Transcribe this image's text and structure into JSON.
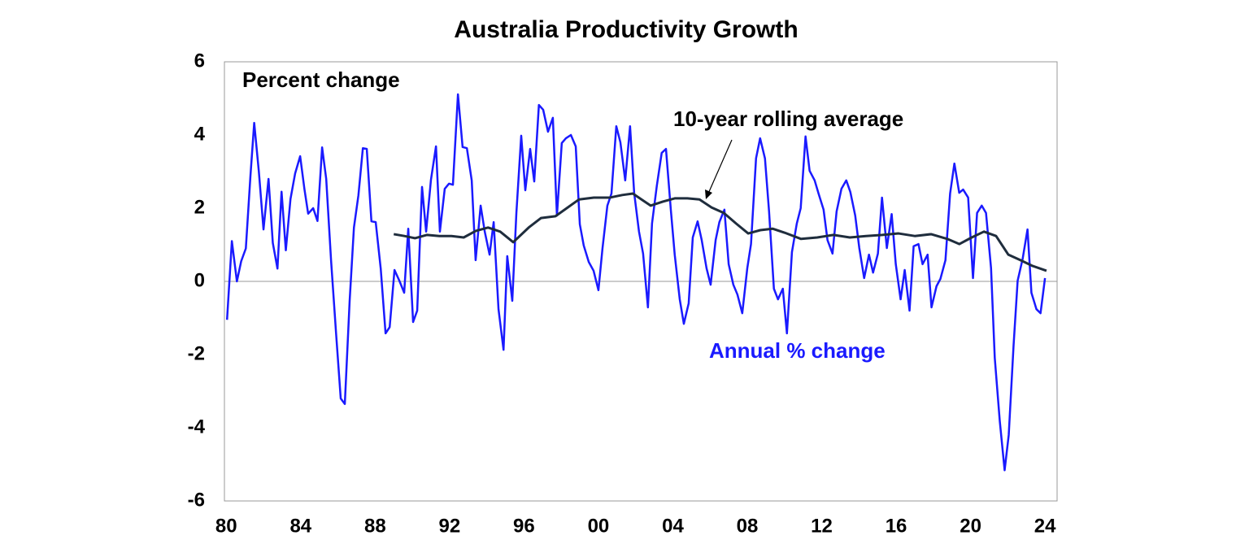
{
  "chart_data": {
    "type": "line",
    "title": "Australia Productivity Growth",
    "ylabel": "Percent change",
    "xlim": [
      1979.9,
      2024.65
    ],
    "xticks": [
      {
        "value": 1980,
        "label": "80"
      },
      {
        "value": 1984,
        "label": "84"
      },
      {
        "value": 1988,
        "label": "88"
      },
      {
        "value": 1992,
        "label": "92"
      },
      {
        "value": 1996,
        "label": "96"
      },
      {
        "value": 2000,
        "label": "00"
      },
      {
        "value": 2004,
        "label": "04"
      },
      {
        "value": 2008,
        "label": "08"
      },
      {
        "value": 2012,
        "label": "12"
      },
      {
        "value": 2016,
        "label": "16"
      },
      {
        "value": 2020,
        "label": "20"
      },
      {
        "value": 2024,
        "label": "24"
      }
    ],
    "ylim": [
      -6,
      6
    ],
    "yticks": [
      -6,
      -4,
      -2,
      0,
      2,
      4,
      6
    ],
    "zero_line": true,
    "series": [
      {
        "name": "Annual % change",
        "color": "#1a1aff",
        "x": [
          1980.04,
          1980.3,
          1980.57,
          1980.8,
          1981.05,
          1981.3,
          1981.5,
          1981.75,
          1982.0,
          1982.27,
          1982.5,
          1982.75,
          1982.97,
          1983.2,
          1983.45,
          1983.7,
          1983.97,
          1984.2,
          1984.4,
          1984.67,
          1984.9,
          1985.15,
          1985.37,
          1985.63,
          1985.9,
          1986.15,
          1986.37,
          1986.63,
          1986.86,
          1987.1,
          1987.34,
          1987.55,
          1987.8,
          1988.03,
          1988.3,
          1988.56,
          1988.78,
          1989.04,
          1989.3,
          1989.56,
          1989.78,
          1990.04,
          1990.26,
          1990.52,
          1990.74,
          1991.0,
          1991.27,
          1991.48,
          1991.74,
          1991.97,
          1992.18,
          1992.45,
          1992.7,
          1992.93,
          1993.19,
          1993.4,
          1993.67,
          1993.89,
          1994.15,
          1994.37,
          1994.63,
          1994.9,
          1995.1,
          1995.37,
          1995.59,
          1995.85,
          1996.07,
          1996.33,
          1996.55,
          1996.8,
          1997.03,
          1997.29,
          1997.55,
          1997.77,
          1998.03,
          1998.25,
          1998.52,
          1998.78,
          1999.0,
          1999.21,
          1999.48,
          1999.74,
          2000.0,
          2000.22,
          2000.48,
          2000.7,
          2000.96,
          2001.18,
          2001.44,
          2001.7,
          2001.92,
          2002.18,
          2002.4,
          2002.66,
          2002.88,
          2003.14,
          2003.4,
          2003.63,
          2003.89,
          2004.1,
          2004.37,
          2004.59,
          2004.85,
          2005.07,
          2005.33,
          2005.55,
          2005.81,
          2006.03,
          2006.3,
          2006.5,
          2006.77,
          2007.0,
          2007.25,
          2007.47,
          2007.73,
          2008.0,
          2008.2,
          2008.47,
          2008.69,
          2008.95,
          2009.17,
          2009.43,
          2009.65,
          2009.91,
          2010.13,
          2010.4,
          2010.66,
          2010.87,
          2011.13,
          2011.35,
          2011.62,
          2011.83,
          2012.1,
          2012.31,
          2012.58,
          2012.8,
          2013.06,
          2013.32,
          2013.54,
          2013.8,
          2014.02,
          2014.28,
          2014.54,
          2014.76,
          2015.02,
          2015.24,
          2015.5,
          2015.76,
          2015.98,
          2016.24,
          2016.46,
          2016.72,
          2016.94,
          2017.2,
          2017.42,
          2017.69,
          2017.9,
          2018.17,
          2018.38,
          2018.65,
          2018.9,
          2019.13,
          2019.39,
          2019.6,
          2019.87,
          2020.13,
          2020.35,
          2020.6,
          2020.83,
          2021.1,
          2021.3,
          2021.57,
          2021.83,
          2022.05,
          2022.31,
          2022.53,
          2022.8,
          2023.06,
          2023.27,
          2023.54,
          2023.76,
          2024.0
        ],
        "values": [
          -1.05,
          1.1,
          0,
          0.55,
          0.9,
          2.9,
          4.33,
          3.0,
          1.42,
          2.8,
          1.05,
          0.35,
          2.45,
          0.85,
          2.25,
          2.95,
          3.42,
          2.52,
          1.85,
          2.0,
          1.65,
          3.66,
          2.8,
          0.58,
          -1.42,
          -3.2,
          -3.35,
          -0.53,
          1.47,
          2.35,
          3.64,
          3.62,
          1.64,
          1.62,
          0.35,
          -1.42,
          -1.25,
          0.31,
          0.02,
          -0.31,
          1.44,
          -1.11,
          -0.8,
          2.58,
          1.36,
          2.78,
          3.69,
          1.36,
          2.53,
          2.67,
          2.64,
          5.11,
          3.67,
          3.64,
          2.76,
          0.58,
          2.07,
          1.36,
          0.73,
          1.62,
          -0.76,
          -1.87,
          0.69,
          -0.53,
          1.87,
          3.98,
          2.49,
          3.62,
          2.73,
          4.82,
          4.69,
          4.09,
          4.47,
          1.8,
          3.78,
          3.91,
          4.0,
          3.69,
          1.56,
          0.98,
          0.53,
          0.29,
          -0.24,
          0.91,
          2.07,
          2.4,
          4.24,
          3.8,
          2.76,
          4.24,
          2.42,
          1.36,
          0.76,
          -0.71,
          1.58,
          2.62,
          3.51,
          3.62,
          1.96,
          0.73,
          -0.49,
          -1.16,
          -0.6,
          1.2,
          1.64,
          1.13,
          0.36,
          -0.09,
          1.13,
          1.62,
          1.96,
          0.47,
          -0.09,
          -0.36,
          -0.87,
          0.36,
          1.02,
          3.36,
          3.91,
          3.36,
          1.91,
          -0.2,
          -0.49,
          -0.2,
          -1.42,
          0.8,
          1.58,
          2.0,
          3.96,
          3.02,
          2.76,
          2.4,
          1.96,
          1.13,
          0.76,
          1.91,
          2.53,
          2.76,
          2.44,
          1.8,
          0.91,
          0.09,
          0.73,
          0.24,
          0.76,
          2.29,
          0.91,
          1.84,
          0.47,
          -0.49,
          0.31,
          -0.8,
          0.96,
          1.02,
          0.47,
          0.73,
          -0.71,
          -0.13,
          0.07,
          0.58,
          2.4,
          3.22,
          2.42,
          2.51,
          2.29,
          0.09,
          1.87,
          2.07,
          1.87,
          0.36,
          -2.09,
          -3.82,
          -5.16,
          -4.2,
          -1.76,
          0.02,
          0.62,
          1.42,
          -0.31,
          -0.76,
          -0.87,
          0.09
        ]
      },
      {
        "name": "10-year rolling average",
        "color": "#1f2d3d",
        "x": [
          1989.0,
          1989.57,
          1990.14,
          1990.79,
          1991.45,
          1992.1,
          1992.76,
          1993.41,
          1994.07,
          1994.72,
          1995.42,
          1996.25,
          1996.91,
          1997.69,
          1998.35,
          1998.96,
          1999.75,
          2000.62,
          2001.28,
          2001.85,
          2002.37,
          2002.81,
          2003.46,
          2004.12,
          2004.78,
          2005.43,
          2006.08,
          2006.74,
          2007.4,
          2008.05,
          2008.7,
          2009.36,
          2010.01,
          2010.89,
          2011.76,
          2012.63,
          2013.51,
          2014.38,
          2015.26,
          2016.13,
          2017.0,
          2017.88,
          2018.75,
          2019.4,
          2020.06,
          2020.72,
          2021.37,
          2022.03,
          2022.68,
          2023.34,
          2024.08
        ],
        "values": [
          1.29,
          1.24,
          1.18,
          1.27,
          1.24,
          1.24,
          1.2,
          1.38,
          1.47,
          1.36,
          1.07,
          1.47,
          1.73,
          1.78,
          2.02,
          2.24,
          2.29,
          2.29,
          2.36,
          2.4,
          2.22,
          2.07,
          2.18,
          2.27,
          2.27,
          2.24,
          2.02,
          1.87,
          1.58,
          1.31,
          1.4,
          1.44,
          1.33,
          1.16,
          1.2,
          1.27,
          1.2,
          1.24,
          1.27,
          1.31,
          1.24,
          1.29,
          1.16,
          1.02,
          1.2,
          1.36,
          1.24,
          0.73,
          0.58,
          0.42,
          0.29
        ]
      }
    ]
  }
}
